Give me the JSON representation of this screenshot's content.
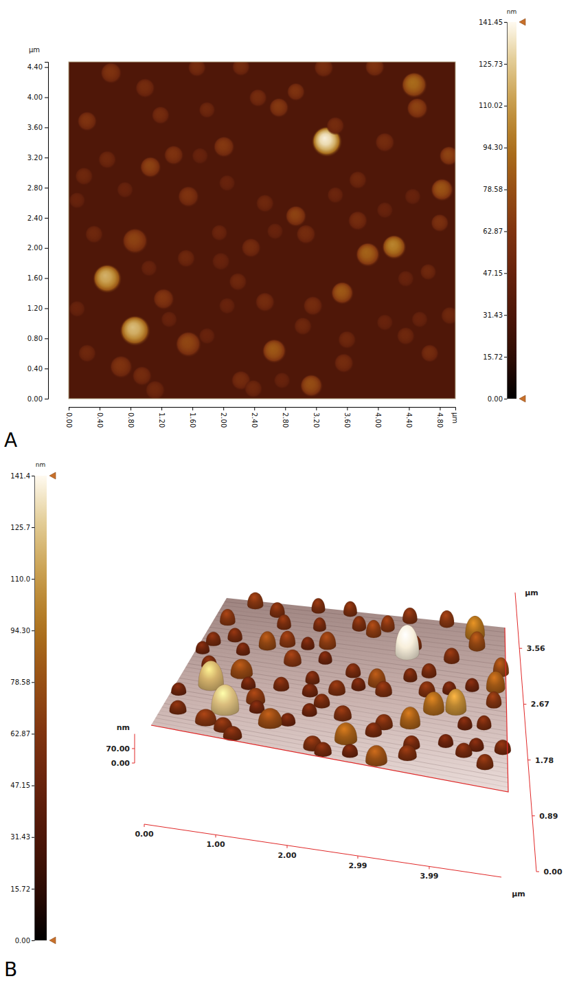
{
  "chart_data": [
    {
      "type": "height_map",
      "panel": "A",
      "x_label": "µm",
      "y_label": "µm",
      "xlim": [
        0,
        5.0
      ],
      "ylim": [
        0,
        4.47
      ],
      "xticks": [
        {
          "value": 0,
          "label": "0.00"
        },
        {
          "value": 0.4,
          "label": "0.40"
        },
        {
          "value": 0.8,
          "label": "0.80"
        },
        {
          "value": 1.2,
          "label": "1.20"
        },
        {
          "value": 1.6,
          "label": "1.60"
        },
        {
          "value": 2,
          "label": "2.00"
        },
        {
          "value": 2.4,
          "label": "2.40"
        },
        {
          "value": 2.8,
          "label": "2.80"
        },
        {
          "value": 3.2,
          "label": "3.20"
        },
        {
          "value": 3.6,
          "label": "3.60"
        },
        {
          "value": 4,
          "label": "4.00"
        },
        {
          "value": 4.4,
          "label": "4.40"
        },
        {
          "value": 4.8,
          "label": "4.80"
        }
      ],
      "yticks": [
        {
          "value": 0,
          "label": "0.00"
        },
        {
          "value": 0.4,
          "label": "0.40"
        },
        {
          "value": 0.8,
          "label": "0.80"
        },
        {
          "value": 1.2,
          "label": "1.20"
        },
        {
          "value": 1.6,
          "label": "1.60"
        },
        {
          "value": 2,
          "label": "2.00"
        },
        {
          "value": 2.4,
          "label": "2.40"
        },
        {
          "value": 2.8,
          "label": "2.80"
        },
        {
          "value": 3.2,
          "label": "3.20"
        },
        {
          "value": 3.6,
          "label": "3.60"
        },
        {
          "value": 4,
          "label": "4.00"
        },
        {
          "value": 4.4,
          "label": "4.40"
        }
      ],
      "background": 33,
      "series": [
        {
          "x": [
            3.34,
            0.5,
            0.86,
            4.21,
            3.87,
            4.47,
            4.51,
            4.83,
            4.92,
            3.54,
            2.66,
            3.14,
            1.55,
            1.23,
            0.86,
            1.06,
            1.36,
            2.01,
            2.72,
            2.94,
            2.45,
            2.94,
            3.45,
            0.24,
            0.55,
            0.99,
            1.19,
            1.55,
            1.79,
            2.23,
            3.96,
            4.8,
            4.67,
            4.65,
            4.36,
            3.56,
            2.23,
            2.39,
            0.68,
            0.24,
            0.11,
            0.33,
            0.11,
            0.5,
            2.36,
            2.67,
            3.07,
            3.74,
            4.09,
            4.45,
            3.16,
            2.54,
            1.97,
            2.19,
            1.52,
            1.04,
            1.3,
            2.05,
            1.12,
            1.79,
            3.03,
            4.09,
            4.36,
            3.74,
            4.09,
            3.3,
            1.66,
            2.54,
            2.05,
            0.73,
            1.7,
            4.54,
            4.93,
            2.76,
            3.6,
            0.2,
            1.95,
            3.45,
            0.95
          ],
          "values": [
            3.41,
            1.59,
            0.9,
            2.01,
            1.91,
            4.16,
            3.85,
            2.77,
            3.22,
            1.4,
            0.63,
            0.17,
            0.72,
            1.32,
            2.09,
            3.07,
            3.23,
            3.34,
            3.86,
            4.07,
            3.99,
            2.42,
            3.62,
            3.68,
            4.32,
            4.12,
            3.76,
            2.68,
            3.83,
            4.4,
            4.4,
            2.33,
            0.6,
            1.68,
            1.59,
            0.47,
            0.24,
            0.13,
            0.42,
            0.6,
            1.19,
            2.18,
            2.63,
            3.17,
            2.0,
            2.22,
            2.18,
            2.36,
            2.5,
            2.68,
            1.23,
            1.28,
            1.82,
            1.55,
            1.86,
            1.73,
            1.05,
            1.23,
            0.11,
            0.83,
            0.96,
            1.01,
            0.83,
            2.9,
            3.4,
            4.39,
            4.39,
            2.59,
            2.86,
            2.77,
            3.22,
            1.05,
            1.1,
            0.24,
            0.78,
            2.95,
            2.2,
            2.7,
            0.3
          ],
          "heights": [
            138,
            118,
            122,
            102,
            88,
            92,
            72,
            82,
            72,
            84,
            84,
            78,
            74,
            64,
            72,
            72,
            62,
            66,
            66,
            62,
            56,
            72,
            56,
            62,
            62,
            56,
            56,
            62,
            52,
            56,
            62,
            60,
            56,
            52,
            48,
            56,
            56,
            52,
            62,
            52,
            48,
            52,
            48,
            52,
            56,
            48,
            56,
            56,
            48,
            48,
            56,
            56,
            48,
            52,
            52,
            48,
            48,
            48,
            52,
            48,
            52,
            48,
            52,
            52,
            56,
            58,
            56,
            52,
            48,
            48,
            48,
            48,
            52,
            48,
            52,
            52,
            50,
            50,
            56
          ],
          "sizes": [
            0.4,
            0.38,
            0.4,
            0.32,
            0.32,
            0.34,
            0.28,
            0.3,
            0.26,
            0.3,
            0.32,
            0.3,
            0.34,
            0.28,
            0.34,
            0.28,
            0.26,
            0.28,
            0.26,
            0.24,
            0.24,
            0.28,
            0.24,
            0.26,
            0.28,
            0.26,
            0.24,
            0.28,
            0.22,
            0.24,
            0.26,
            0.24,
            0.24,
            0.22,
            0.22,
            0.26,
            0.26,
            0.24,
            0.3,
            0.24,
            0.22,
            0.24,
            0.22,
            0.24,
            0.26,
            0.22,
            0.26,
            0.26,
            0.22,
            0.22,
            0.26,
            0.26,
            0.24,
            0.24,
            0.24,
            0.22,
            0.22,
            0.22,
            0.26,
            0.22,
            0.24,
            0.22,
            0.24,
            0.24,
            0.26,
            0.26,
            0.24,
            0.24,
            0.22,
            0.22,
            0.22,
            0.22,
            0.24,
            0.22,
            0.24,
            0.24,
            0.22,
            0.22,
            0.26
          ]
        }
      ],
      "color_bar": {
        "label": "nm",
        "range": [
          0,
          141.45
        ],
        "ticks": [
          {
            "value": 0,
            "label": "0.00"
          },
          15.72,
          31.43,
          47.15,
          62.87,
          78.58,
          {
            "value": 94.3,
            "label": "94.30"
          },
          110.02,
          125.73,
          141.45
        ]
      }
    },
    {
      "type": "surface_3d",
      "panel": "B",
      "x_label": "µm",
      "y_label": "µm",
      "z_label": "nm",
      "xlim": [
        0,
        5.0
      ],
      "ylim": [
        0,
        4.45
      ],
      "zlim": [
        0,
        141.4
      ],
      "xticks": [
        {
          "value": 0,
          "label": "0.00"
        },
        {
          "value": 1,
          "label": "1.00"
        },
        {
          "value": 2,
          "label": "2.00"
        },
        2.99,
        3.99
      ],
      "yticks": [
        {
          "value": 0,
          "label": "0.00"
        },
        0.89,
        1.78,
        2.67,
        3.56
      ],
      "zticks": [
        {
          "value": 0,
          "label": "0.00"
        },
        {
          "value": 70,
          "label": "70.00"
        }
      ],
      "series": [
        {
          "x": [
            3.34,
            0.5,
            0.86,
            4.21,
            3.87,
            4.47,
            4.51,
            4.83,
            4.92,
            3.54,
            2.66,
            3.14,
            1.55,
            1.23,
            0.86,
            1.06,
            1.36,
            2.01,
            2.72,
            2.94,
            2.45,
            2.94,
            3.45,
            0.24,
            0.55,
            0.99,
            1.19,
            1.55,
            1.79,
            2.23,
            3.96,
            4.8,
            4.67,
            4.65,
            4.36,
            3.56,
            2.23,
            2.39,
            0.68,
            0.24,
            0.11,
            0.33,
            0.11,
            0.5,
            2.36,
            2.67,
            3.07,
            3.74,
            4.09,
            4.45,
            3.16,
            2.54,
            1.97,
            2.19,
            1.52,
            1.04,
            1.3,
            2.05,
            1.12,
            1.79,
            3.03,
            4.09,
            4.36,
            3.74,
            4.09,
            3.3,
            1.66,
            2.54,
            2.05,
            0.73,
            1.7,
            4.54,
            4.93,
            2.76,
            3.6,
            0.2,
            1.95,
            3.45,
            0.95
          ],
          "values": [
            3.41,
            1.59,
            0.9,
            2.01,
            1.91,
            4.16,
            3.85,
            2.77,
            3.22,
            1.4,
            0.63,
            0.17,
            0.72,
            1.32,
            2.09,
            3.07,
            3.23,
            3.34,
            3.86,
            4.07,
            3.99,
            2.42,
            3.62,
            3.68,
            4.32,
            4.12,
            3.76,
            2.68,
            3.83,
            4.4,
            4.4,
            2.33,
            0.6,
            1.68,
            1.59,
            0.47,
            0.24,
            0.13,
            0.42,
            0.6,
            1.19,
            2.18,
            2.63,
            3.17,
            2.0,
            2.22,
            2.18,
            2.36,
            2.5,
            2.68,
            1.23,
            1.28,
            1.82,
            1.55,
            1.86,
            1.73,
            1.05,
            1.23,
            0.11,
            0.83,
            0.96,
            1.01,
            0.83,
            2.9,
            3.4,
            4.39,
            4.39,
            2.59,
            2.86,
            2.77,
            3.22,
            1.05,
            1.1,
            0.24,
            0.78,
            2.95,
            2.2,
            2.7,
            0.3
          ],
          "heights": [
            138,
            118,
            122,
            102,
            88,
            92,
            72,
            82,
            72,
            84,
            84,
            78,
            74,
            64,
            72,
            72,
            62,
            66,
            66,
            62,
            56,
            72,
            56,
            62,
            62,
            56,
            56,
            62,
            52,
            56,
            62,
            60,
            56,
            52,
            48,
            56,
            56,
            52,
            62,
            52,
            48,
            52,
            48,
            52,
            56,
            48,
            56,
            56,
            48,
            48,
            56,
            56,
            48,
            52,
            52,
            48,
            48,
            48,
            52,
            48,
            52,
            48,
            52,
            52,
            56,
            58,
            56,
            52,
            48,
            48,
            48,
            48,
            52,
            48,
            52,
            52,
            50,
            50,
            56
          ],
          "sizes": [
            0.4,
            0.38,
            0.4,
            0.32,
            0.32,
            0.34,
            0.28,
            0.3,
            0.26,
            0.3,
            0.32,
            0.3,
            0.34,
            0.28,
            0.34,
            0.28,
            0.26,
            0.28,
            0.26,
            0.24,
            0.24,
            0.28,
            0.24,
            0.26,
            0.28,
            0.26,
            0.24,
            0.28,
            0.22,
            0.24,
            0.26,
            0.24,
            0.24,
            0.22,
            0.22,
            0.26,
            0.26,
            0.24,
            0.3,
            0.24,
            0.22,
            0.24,
            0.22,
            0.24,
            0.26,
            0.22,
            0.26,
            0.26,
            0.22,
            0.22,
            0.26,
            0.26,
            0.24,
            0.24,
            0.24,
            0.22,
            0.22,
            0.22,
            0.26,
            0.22,
            0.24,
            0.22,
            0.24,
            0.24,
            0.26,
            0.26,
            0.24,
            0.24,
            0.22,
            0.22,
            0.22,
            0.22,
            0.24,
            0.22,
            0.24,
            0.24,
            0.22,
            0.22,
            0.26
          ]
        }
      ],
      "color_bar": {
        "label": "nm",
        "range": [
          0,
          141.4
        ],
        "ticks": [
          {
            "value": 0,
            "label": "0.00"
          },
          15.72,
          31.43,
          47.15,
          62.87,
          78.58,
          {
            "value": 94.3,
            "label": "94.30"
          },
          {
            "value": 110,
            "label": "110.0"
          },
          125.7,
          141.4
        ]
      }
    }
  ]
}
